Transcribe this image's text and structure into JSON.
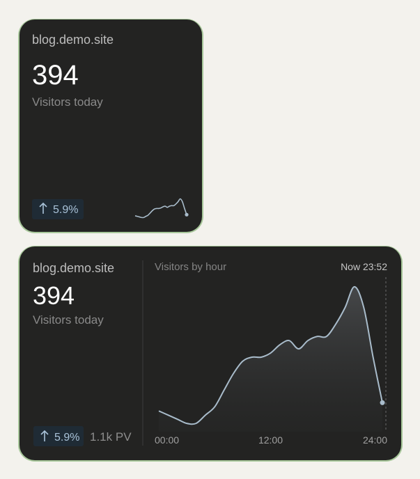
{
  "small_widget": {
    "site": "blog.demo.site",
    "count": "394",
    "label": "Visitors today",
    "change": "5.9%"
  },
  "large_widget": {
    "site": "blog.demo.site",
    "count": "394",
    "label": "Visitors today",
    "change": "5.9%",
    "pageviews": "1.1k PV",
    "chart": {
      "type": "line",
      "title": "Visitors by hour",
      "now_label": "Now 23:52",
      "x": [
        0,
        1,
        2,
        3,
        4,
        5,
        6,
        7,
        8,
        9,
        10,
        11,
        12,
        13,
        14,
        15,
        16,
        17,
        18,
        19,
        20,
        21,
        22,
        23,
        24
      ],
      "values": [
        5,
        4,
        3,
        2,
        2,
        4,
        6,
        10,
        14,
        17,
        18,
        18,
        19,
        21,
        22,
        20,
        22,
        23,
        23,
        26,
        30,
        35,
        30,
        18,
        7
      ],
      "color": "#a9bccb",
      "xlim": [
        0,
        24
      ],
      "ylim": [
        0,
        37
      ],
      "xticks": [
        {
          "value": 0,
          "label": "00:00"
        },
        {
          "value": 12,
          "label": "12:00"
        },
        {
          "value": 24,
          "label": "24:00"
        }
      ]
    }
  }
}
